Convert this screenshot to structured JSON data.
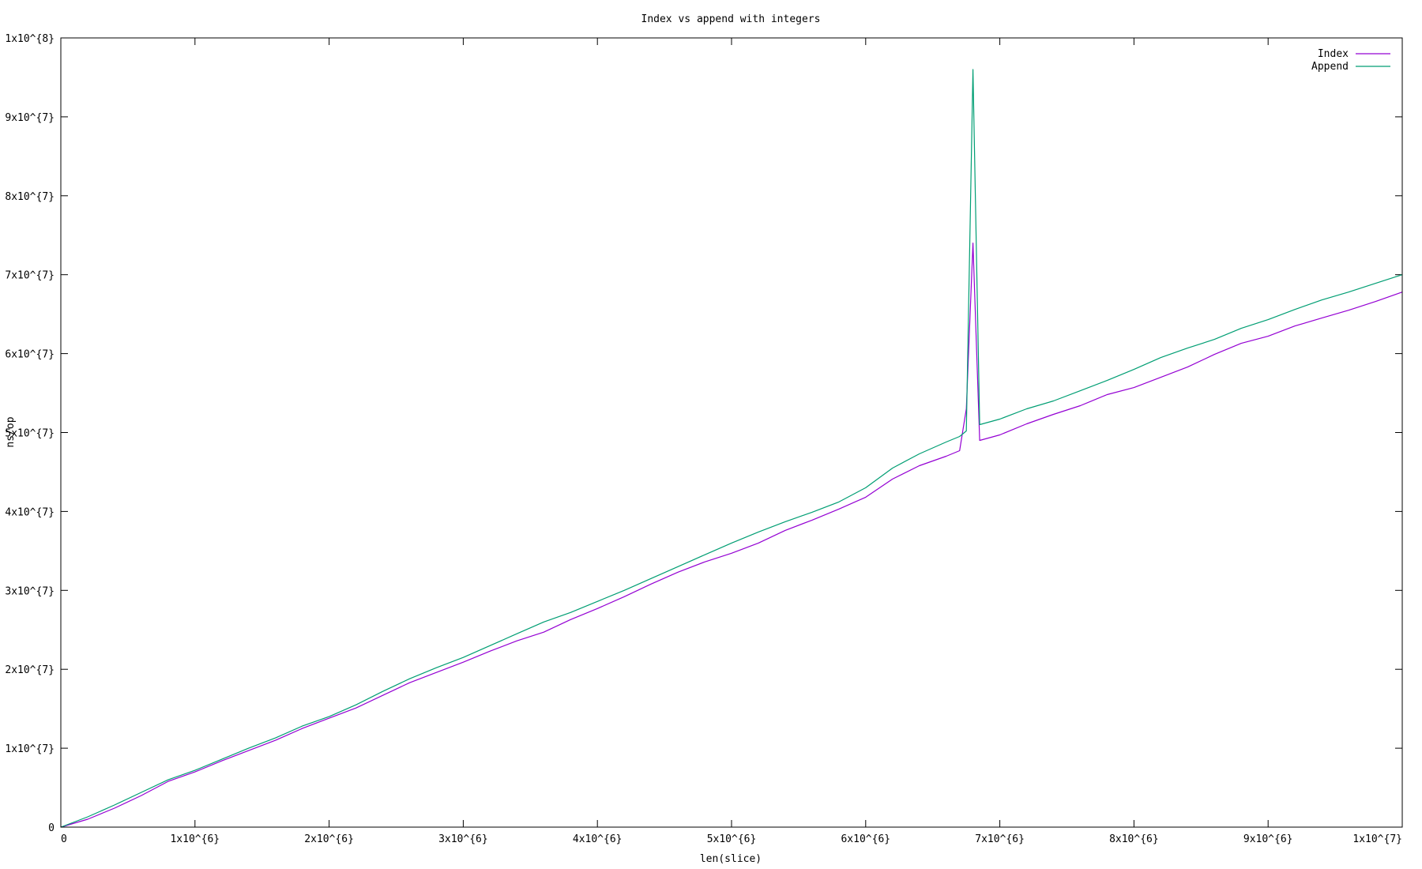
{
  "colors": {
    "index": "#9400d3",
    "append": "#009e73",
    "axis": "#000000",
    "background": "#ffffff"
  },
  "chart_data": {
    "type": "line",
    "title": "Index vs append with integers",
    "xlabel": "len(slice)",
    "ylabel": "ns/op",
    "xlim": [
      0,
      10000000
    ],
    "ylim": [
      0,
      100000000
    ],
    "grid": false,
    "legend_position": "top-right",
    "x_ticks": [
      {
        "value": 0,
        "label": "0"
      },
      {
        "value": 1000000,
        "label": "1x10^{6}"
      },
      {
        "value": 2000000,
        "label": "2x10^{6}"
      },
      {
        "value": 3000000,
        "label": "3x10^{6}"
      },
      {
        "value": 4000000,
        "label": "4x10^{6}"
      },
      {
        "value": 5000000,
        "label": "5x10^{6}"
      },
      {
        "value": 6000000,
        "label": "6x10^{6}"
      },
      {
        "value": 7000000,
        "label": "7x10^{6}"
      },
      {
        "value": 8000000,
        "label": "8x10^{6}"
      },
      {
        "value": 9000000,
        "label": "9x10^{6}"
      },
      {
        "value": 10000000,
        "label": "1x10^{7}"
      }
    ],
    "y_ticks": [
      {
        "value": 0,
        "label": "0"
      },
      {
        "value": 10000000,
        "label": "1x10^{7}"
      },
      {
        "value": 20000000,
        "label": "2x10^{7}"
      },
      {
        "value": 30000000,
        "label": "3x10^{7}"
      },
      {
        "value": 40000000,
        "label": "4x10^{7}"
      },
      {
        "value": 50000000,
        "label": "5x10^{7}"
      },
      {
        "value": 60000000,
        "label": "6x10^{7}"
      },
      {
        "value": 70000000,
        "label": "7x10^{7}"
      },
      {
        "value": 80000000,
        "label": "8x10^{7}"
      },
      {
        "value": 90000000,
        "label": "9x10^{7}"
      },
      {
        "value": 100000000,
        "label": "1x10^{8}"
      }
    ],
    "x": [
      0,
      200000,
      400000,
      600000,
      800000,
      1000000,
      1200000,
      1400000,
      1600000,
      1800000,
      2000000,
      2200000,
      2400000,
      2600000,
      2800000,
      3000000,
      3200000,
      3400000,
      3600000,
      3800000,
      4000000,
      4200000,
      4400000,
      4600000,
      4800000,
      5000000,
      5200000,
      5400000,
      5600000,
      5800000,
      6000000,
      6200000,
      6400000,
      6600000,
      6700000,
      6750000,
      6800000,
      6850000,
      7000000,
      7200000,
      7400000,
      7600000,
      7800000,
      8000000,
      8200000,
      8400000,
      8600000,
      8800000,
      9000000,
      9200000,
      9400000,
      9600000,
      9800000,
      10000000
    ],
    "series": [
      {
        "name": "Index",
        "color": "#9400d3",
        "values": [
          0,
          1000000,
          2400000,
          4000000,
          5800000,
          7000000,
          8400000,
          9700000,
          11000000,
          12500000,
          13800000,
          15100000,
          16700000,
          18300000,
          19600000,
          20900000,
          22300000,
          23600000,
          24700000,
          26300000,
          27700000,
          29200000,
          30800000,
          32300000,
          33600000,
          34700000,
          36000000,
          37600000,
          38900000,
          40300000,
          41800000,
          44100000,
          45800000,
          47000000,
          47700000,
          53000000,
          74000000,
          49000000,
          49700000,
          51100000,
          52300000,
          53400000,
          54800000,
          55700000,
          57000000,
          58300000,
          59900000,
          61300000,
          62200000,
          63500000,
          64500000,
          65500000,
          66600000,
          67800000
        ]
      },
      {
        "name": "Append",
        "color": "#009e73",
        "values": [
          0,
          1300000,
          2800000,
          4400000,
          6000000,
          7200000,
          8600000,
          10000000,
          11300000,
          12800000,
          14000000,
          15500000,
          17200000,
          18800000,
          20200000,
          21500000,
          23000000,
          24500000,
          26000000,
          27200000,
          28600000,
          30000000,
          31500000,
          33000000,
          34500000,
          36000000,
          37400000,
          38700000,
          39900000,
          41200000,
          43000000,
          45500000,
          47300000,
          48800000,
          49500000,
          50200000,
          96000000,
          51000000,
          51700000,
          53000000,
          54000000,
          55300000,
          56600000,
          58000000,
          59500000,
          60700000,
          61800000,
          63200000,
          64300000,
          65600000,
          66800000,
          67800000,
          68900000,
          70000000
        ]
      }
    ]
  }
}
